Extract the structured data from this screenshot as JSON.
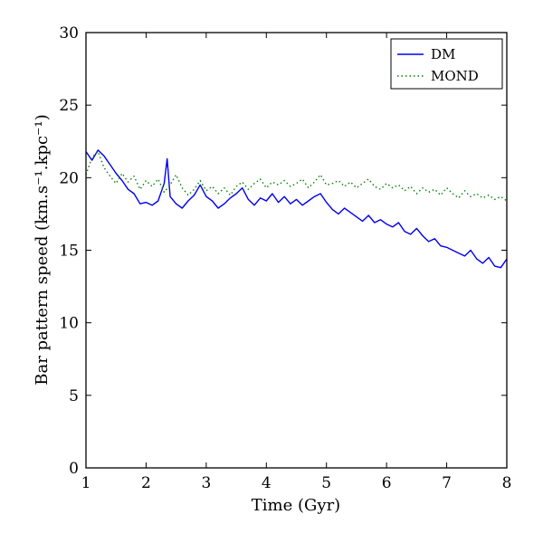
{
  "chart_data": {
    "type": "line",
    "title": "",
    "xlabel": "Time (Gyr)",
    "ylabel": "Bar pattern speed (km.s⁻¹.kpc⁻¹)",
    "xlim": [
      1,
      8
    ],
    "ylim": [
      0,
      30
    ],
    "xticks": [
      1,
      2,
      3,
      4,
      5,
      6,
      7,
      8
    ],
    "yticks": [
      0,
      5,
      10,
      15,
      20,
      25,
      30
    ],
    "grid": false,
    "legend_position": "top-right",
    "series": [
      {
        "name": "DM",
        "color": "#0000ee",
        "style": "solid",
        "x": [
          1.0,
          1.1,
          1.2,
          1.3,
          1.4,
          1.5,
          1.6,
          1.7,
          1.8,
          1.9,
          2.0,
          2.1,
          2.2,
          2.3,
          2.35,
          2.4,
          2.5,
          2.6,
          2.7,
          2.8,
          2.9,
          3.0,
          3.1,
          3.2,
          3.3,
          3.4,
          3.5,
          3.6,
          3.7,
          3.8,
          3.9,
          4.0,
          4.1,
          4.2,
          4.3,
          4.4,
          4.5,
          4.6,
          4.7,
          4.8,
          4.9,
          5.0,
          5.1,
          5.2,
          5.3,
          5.4,
          5.5,
          5.6,
          5.7,
          5.8,
          5.9,
          6.0,
          6.1,
          6.2,
          6.3,
          6.4,
          6.5,
          6.6,
          6.7,
          6.8,
          6.9,
          7.0,
          7.1,
          7.2,
          7.3,
          7.4,
          7.5,
          7.6,
          7.7,
          7.8,
          7.9,
          8.0
        ],
        "y": [
          21.8,
          21.2,
          21.9,
          21.5,
          20.9,
          20.3,
          19.8,
          19.2,
          18.9,
          18.2,
          18.3,
          18.1,
          18.4,
          19.6,
          21.3,
          18.7,
          18.2,
          17.9,
          18.4,
          18.8,
          19.5,
          18.7,
          18.4,
          17.9,
          18.2,
          18.6,
          18.9,
          19.3,
          18.5,
          18.1,
          18.6,
          18.4,
          18.9,
          18.3,
          18.7,
          18.2,
          18.5,
          18.1,
          18.4,
          18.7,
          18.9,
          18.3,
          17.8,
          17.5,
          17.9,
          17.6,
          17.3,
          17.0,
          17.4,
          16.9,
          17.1,
          16.8,
          16.6,
          16.9,
          16.3,
          16.1,
          16.5,
          16.0,
          15.6,
          15.8,
          15.3,
          15.2,
          15.0,
          14.8,
          14.6,
          15.0,
          14.4,
          14.1,
          14.5,
          13.9,
          13.8,
          14.4
        ]
      },
      {
        "name": "MOND",
        "color": "#008000",
        "style": "dotted",
        "x": [
          1.0,
          1.1,
          1.2,
          1.3,
          1.4,
          1.5,
          1.6,
          1.7,
          1.8,
          1.9,
          2.0,
          2.1,
          2.2,
          2.3,
          2.4,
          2.5,
          2.6,
          2.7,
          2.8,
          2.9,
          3.0,
          3.1,
          3.2,
          3.3,
          3.4,
          3.5,
          3.6,
          3.7,
          3.8,
          3.9,
          4.0,
          4.1,
          4.2,
          4.3,
          4.4,
          4.5,
          4.6,
          4.7,
          4.8,
          4.9,
          5.0,
          5.1,
          5.2,
          5.3,
          5.4,
          5.5,
          5.6,
          5.7,
          5.8,
          5.9,
          6.0,
          6.1,
          6.2,
          6.3,
          6.4,
          6.5,
          6.6,
          6.7,
          6.8,
          6.9,
          7.0,
          7.1,
          7.2,
          7.3,
          7.4,
          7.5,
          7.6,
          7.7,
          7.8,
          7.9,
          8.0
        ],
        "y": [
          20.2,
          21.4,
          21.8,
          20.7,
          20.1,
          19.6,
          20.3,
          19.7,
          20.1,
          19.2,
          19.8,
          19.4,
          19.9,
          19.0,
          19.5,
          20.2,
          19.3,
          18.8,
          19.2,
          19.8,
          19.1,
          19.4,
          18.9,
          19.3,
          18.8,
          19.4,
          19.7,
          19.2,
          19.6,
          19.9,
          19.3,
          19.7,
          19.5,
          19.8,
          19.4,
          19.6,
          19.9,
          19.3,
          19.7,
          20.2,
          19.5,
          19.6,
          19.8,
          19.4,
          19.7,
          19.3,
          19.6,
          19.9,
          19.4,
          19.2,
          19.6,
          19.3,
          19.5,
          19.1,
          19.4,
          18.9,
          19.3,
          19.0,
          19.2,
          18.8,
          19.3,
          18.9,
          18.6,
          19.1,
          18.7,
          18.9,
          18.6,
          18.8,
          18.5,
          18.7,
          18.4
        ]
      }
    ]
  }
}
